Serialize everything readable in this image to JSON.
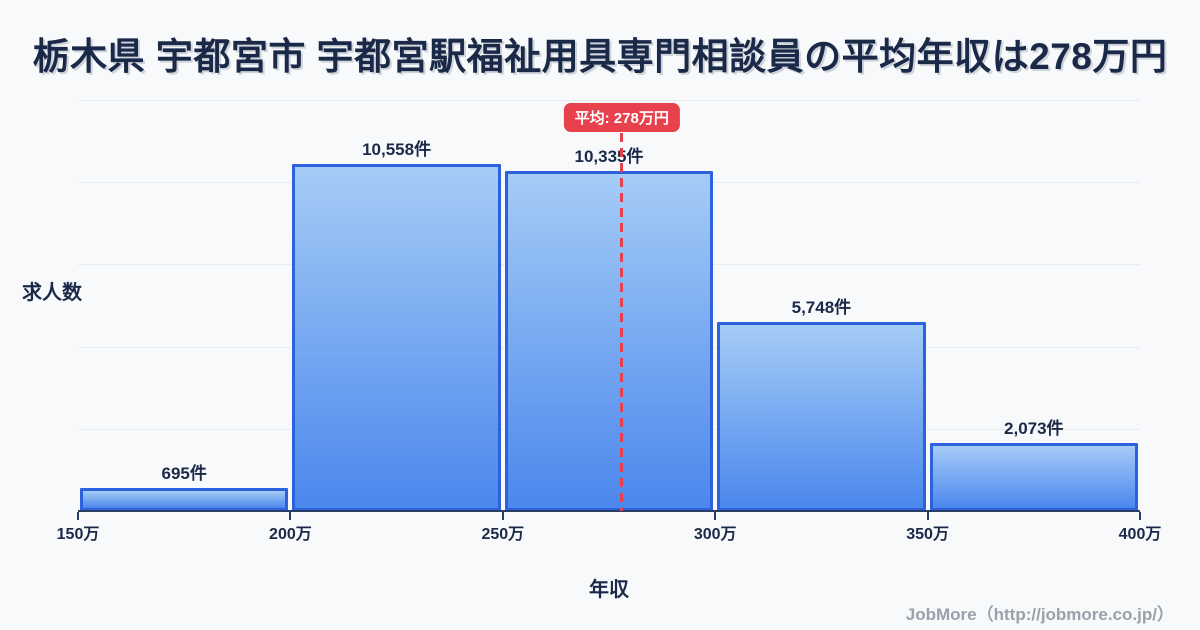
{
  "header": {
    "title": "栃木県 宇都宮市 宇都宮駅福祉用具専門相談員の平均年収は278万円"
  },
  "footer": {
    "credit": "JobMore（http://jobmore.co.jp/）"
  },
  "chart_data": {
    "type": "bar",
    "title": "栃木県 宇都宮市 宇都宮駅福祉用具専門相談員の平均年収は278万円",
    "xlabel": "年収",
    "ylabel": "求人数",
    "x_tick_labels": [
      "150万",
      "200万",
      "250万",
      "300万",
      "350万",
      "400万"
    ],
    "x_tick_values": [
      150,
      200,
      250,
      300,
      350,
      400
    ],
    "categories": [
      "150万-200万",
      "200万-250万",
      "250万-300万",
      "300万-350万",
      "350万-400万"
    ],
    "values": [
      695,
      10558,
      10335,
      5748,
      2073
    ],
    "value_labels": [
      "695件",
      "10,558件",
      "10,335件",
      "5,748件",
      "2,073件"
    ],
    "ylim": [
      0,
      12500
    ],
    "gridline_values": [
      2500,
      5000,
      7500,
      10000,
      12500
    ],
    "grid": true,
    "legend_position": "none",
    "average_line": {
      "label": "平均: 278万円",
      "value": 278
    },
    "colors": {
      "background": "#f7f9fb",
      "text_navy": "#1b2948",
      "bar_gradient_top": "#a5ccf6",
      "bar_gradient_bottom": "#4b87ed",
      "bar_border": "#2e62dd",
      "average_red": "#e6414d",
      "gridline": "#e8ecf2",
      "axis": "#2a3f66",
      "footer_gray": "#9ba1ab"
    }
  }
}
